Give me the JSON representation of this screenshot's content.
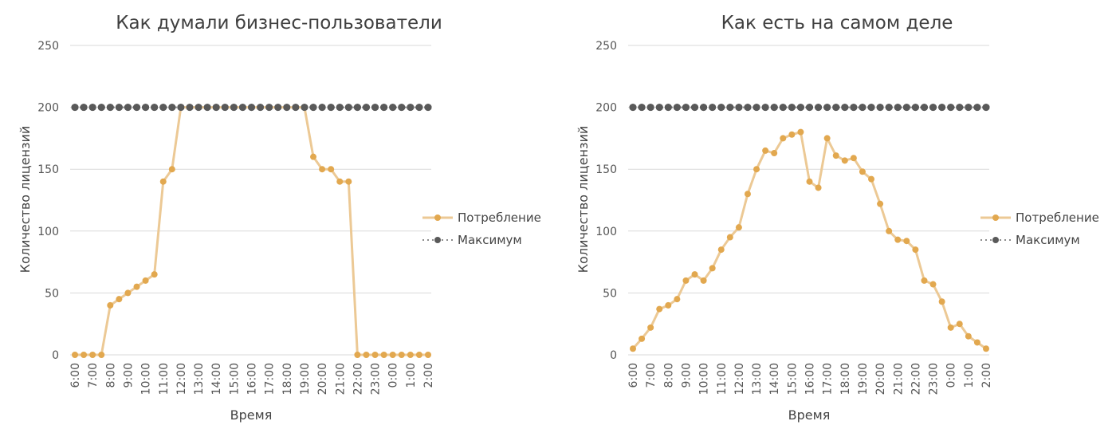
{
  "colors": {
    "consumption_line": "#ecc995",
    "consumption_marker": "#e2a84f",
    "max_marker": "#595959",
    "grid": "#d9d9d9"
  },
  "chart_data": [
    {
      "type": "line",
      "title": "Как думали бизнес-пользователи",
      "xlabel": "Время",
      "ylabel": "Количество лицензий",
      "ylim": [
        0,
        250
      ],
      "yticks": [
        "0",
        "50",
        "100",
        "150",
        "200",
        "250"
      ],
      "xtick_labels": [
        "6:00",
        "7:00",
        "8:00",
        "9:00",
        "10:00",
        "11:00",
        "12:00",
        "13:00",
        "14:00",
        "15:00",
        "16:00",
        "17:00",
        "18:00",
        "19:00",
        "20:00",
        "21:00",
        "22:00",
        "23:00",
        "0:00",
        "1:00",
        "2:00"
      ],
      "x_step": "30 min",
      "grid": true,
      "legend_position": "right",
      "series": [
        {
          "name": "Потребление",
          "values": [
            0,
            0,
            0,
            0,
            40,
            45,
            50,
            55,
            60,
            65,
            140,
            150,
            200,
            200,
            200,
            200,
            200,
            200,
            200,
            200,
            200,
            200,
            200,
            200,
            200,
            200,
            200,
            160,
            150,
            150,
            140,
            140,
            0,
            0,
            0,
            0,
            0,
            0,
            0,
            0,
            0
          ]
        },
        {
          "name": "Максимум",
          "values": [
            200,
            200,
            200,
            200,
            200,
            200,
            200,
            200,
            200,
            200,
            200,
            200,
            200,
            200,
            200,
            200,
            200,
            200,
            200,
            200,
            200,
            200,
            200,
            200,
            200,
            200,
            200,
            200,
            200,
            200,
            200,
            200,
            200,
            200,
            200,
            200,
            200,
            200,
            200,
            200,
            200
          ]
        }
      ]
    },
    {
      "type": "line",
      "title": "Как есть на самом деле",
      "xlabel": "Время",
      "ylabel": "Количество лицензий",
      "ylim": [
        0,
        250
      ],
      "yticks": [
        "0",
        "50",
        "100",
        "150",
        "200",
        "250"
      ],
      "xtick_labels": [
        "6:00",
        "7:00",
        "8:00",
        "9:00",
        "10:00",
        "11:00",
        "12:00",
        "13:00",
        "14:00",
        "15:00",
        "16:00",
        "17:00",
        "18:00",
        "19:00",
        "20:00",
        "21:00",
        "22:00",
        "23:00",
        "0:00",
        "1:00",
        "2:00"
      ],
      "x_step": "30 min",
      "grid": true,
      "legend_position": "right",
      "series": [
        {
          "name": "Потребление",
          "values": [
            5,
            13,
            22,
            37,
            40,
            45,
            60,
            65,
            60,
            70,
            85,
            95,
            103,
            130,
            150,
            165,
            163,
            175,
            178,
            180,
            140,
            135,
            175,
            161,
            157,
            159,
            148,
            142,
            122,
            100,
            93,
            92,
            85,
            60,
            57,
            43,
            22,
            25,
            15,
            10,
            5
          ]
        },
        {
          "name": "Максимум",
          "values": [
            200,
            200,
            200,
            200,
            200,
            200,
            200,
            200,
            200,
            200,
            200,
            200,
            200,
            200,
            200,
            200,
            200,
            200,
            200,
            200,
            200,
            200,
            200,
            200,
            200,
            200,
            200,
            200,
            200,
            200,
            200,
            200,
            200,
            200,
            200,
            200,
            200,
            200,
            200,
            200,
            200
          ]
        }
      ]
    }
  ]
}
